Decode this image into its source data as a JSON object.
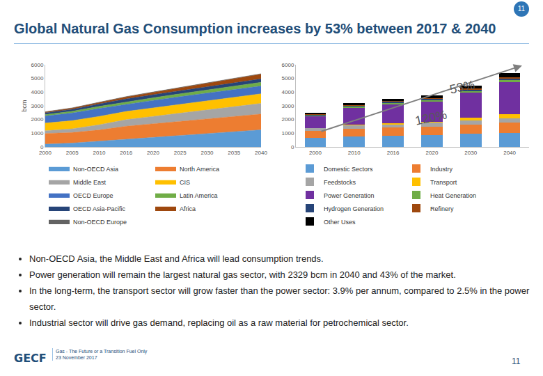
{
  "slide": {
    "title": "Global Natural Gas Consumption increases by 53% between 2017 & 2040",
    "page_number": "11",
    "bullets": [
      "Non-OECD Asia, the Middle East and Africa will lead consumption trends.",
      "Power generation will remain the largest natural gas sector, with 2329 bcm in 2040 and 43% of the market.",
      "In the long-term, the transport sector will grow faster than the power sector: 3.9% per annum, compared to 2.5% in the power sector.",
      "Industrial sector will drive gas demand, replacing oil as a raw material for petrochemical sector."
    ],
    "footer": [
      "Gas - The Future or a Transition Fuel Only",
      "23 November 2017"
    ],
    "logo": "GECF"
  },
  "chart_data": [
    {
      "type": "area",
      "stacked": true,
      "ylabel": "bcm",
      "grid": false,
      "legend": "bottom",
      "categories": [
        "2000",
        "2005",
        "2010",
        "2016",
        "2020",
        "2025",
        "2030",
        "2035",
        "2040"
      ],
      "ylim": [
        0,
        6000
      ],
      "yticks": [
        0,
        1000,
        2000,
        3000,
        4000,
        5000,
        6000
      ],
      "series": [
        {
          "name": "Non-OECD Asia",
          "color": "#5b9bd5",
          "values": [
            200,
            280,
            420,
            560,
            680,
            820,
            960,
            1100,
            1250
          ]
        },
        {
          "name": "North America",
          "color": "#ed7d31",
          "values": [
            780,
            770,
            820,
            950,
            1010,
            1050,
            1090,
            1120,
            1150
          ]
        },
        {
          "name": "Middle East",
          "color": "#a5a5a5",
          "values": [
            200,
            270,
            380,
            480,
            540,
            600,
            660,
            720,
            780
          ]
        },
        {
          "name": "CIS",
          "color": "#ffc000",
          "values": [
            560,
            600,
            610,
            600,
            620,
            640,
            660,
            680,
            700
          ]
        },
        {
          "name": "OECD Europe",
          "color": "#4472c4",
          "values": [
            520,
            560,
            580,
            530,
            550,
            560,
            570,
            570,
            570
          ]
        },
        {
          "name": "Latin America",
          "color": "#70ad47",
          "values": [
            100,
            120,
            150,
            170,
            190,
            210,
            230,
            250,
            270
          ]
        },
        {
          "name": "OECD Asia-Pacific",
          "color": "#264478",
          "values": [
            130,
            150,
            180,
            220,
            225,
            230,
            235,
            240,
            245
          ]
        },
        {
          "name": "Africa",
          "color": "#9e480e",
          "values": [
            60,
            80,
            100,
            140,
            170,
            210,
            250,
            300,
            350
          ]
        },
        {
          "name": "Non-OECD Europe",
          "color": "#636363",
          "values": [
            20,
            22,
            24,
            25,
            26,
            27,
            28,
            29,
            30
          ]
        }
      ]
    },
    {
      "type": "bar",
      "stacked": true,
      "grid": false,
      "legend": "bottom",
      "categories": [
        "2000",
        "2010",
        "2016",
        "2020",
        "2030",
        "2040"
      ],
      "ylim": [
        0,
        6000
      ],
      "yticks": [
        0,
        1000,
        2000,
        3000,
        4000,
        5000,
        6000
      ],
      "annotations": [
        "53%",
        "120%"
      ],
      "series": [
        {
          "name": "Domestic Sectors",
          "color": "#5b9bd5",
          "values": [
            650,
            780,
            800,
            850,
            950,
            1000
          ]
        },
        {
          "name": "Industry",
          "color": "#ed7d31",
          "values": [
            500,
            550,
            600,
            650,
            700,
            780
          ]
        },
        {
          "name": "Feedstocks",
          "color": "#a5a5a5",
          "values": [
            200,
            230,
            250,
            260,
            300,
            330
          ]
        },
        {
          "name": "Transport",
          "color": "#ffc000",
          "values": [
            30,
            50,
            60,
            90,
            200,
            300
          ]
        },
        {
          "name": "Power Generation",
          "color": "#7030a0",
          "values": [
            850,
            1250,
            1400,
            1450,
            1800,
            2329
          ]
        },
        {
          "name": "Heat Generation",
          "color": "#70ad47",
          "values": [
            70,
            90,
            100,
            110,
            120,
            130
          ]
        },
        {
          "name": "Hydrogen Generation",
          "color": "#264478",
          "values": [
            50,
            60,
            70,
            80,
            90,
            100
          ]
        },
        {
          "name": "Refinery",
          "color": "#9e480e",
          "values": [
            50,
            60,
            70,
            80,
            90,
            100
          ]
        },
        {
          "name": "Other Uses",
          "color": "#000000",
          "values": [
            100,
            130,
            150,
            180,
            250,
            300
          ]
        }
      ]
    }
  ]
}
